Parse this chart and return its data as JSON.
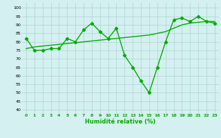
{
  "x": [
    0,
    1,
    2,
    3,
    4,
    5,
    6,
    7,
    8,
    9,
    10,
    11,
    12,
    13,
    14,
    15,
    16,
    17,
    18,
    19,
    20,
    21,
    22,
    23
  ],
  "y_line": [
    76,
    77,
    77.5,
    78,
    78.5,
    79,
    79.5,
    80,
    80.5,
    81,
    81.5,
    82,
    82.5,
    83,
    83.5,
    84,
    85,
    86,
    88,
    90,
    91,
    91.5,
    92,
    92
  ],
  "y_data": [
    82,
    75,
    75,
    76,
    76,
    82,
    80,
    87,
    91,
    86,
    82,
    88,
    72,
    65,
    57,
    50,
    65,
    80,
    93,
    94,
    92,
    95,
    92,
    91
  ],
  "bg_color": "#d5f0f0",
  "grid_color": "#b0d8d8",
  "line_color": "#00aa00",
  "xlabel": "Humidité relative (%)",
  "xlabel_color": "#00aa00",
  "yticks": [
    40,
    45,
    50,
    55,
    60,
    65,
    70,
    75,
    80,
    85,
    90,
    95,
    100
  ],
  "xlim": [
    -0.5,
    23.5
  ],
  "ylim": [
    38,
    103
  ],
  "marker": "D",
  "marker_size": 2.2,
  "linewidth": 1.0
}
